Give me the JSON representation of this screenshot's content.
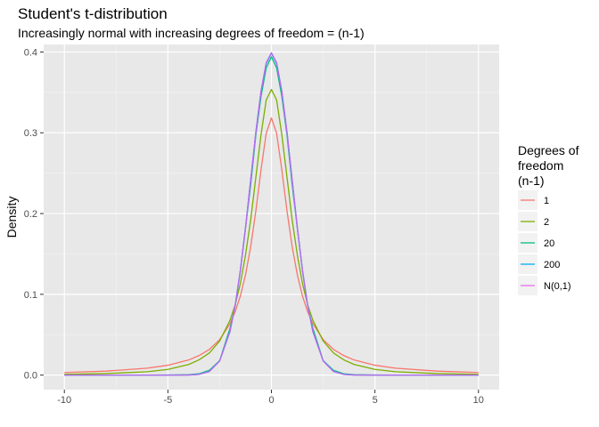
{
  "title": "Student's t-distribution",
  "subtitle": "Increasingly normal with increasing degrees of freedom = (n-1)",
  "chart_data": {
    "type": "line",
    "title": "Student's t-distribution",
    "subtitle": "Increasingly normal with increasing degrees of freedom = (n-1)",
    "xlabel": "",
    "ylabel": "Density",
    "xlim": [
      -10,
      10
    ],
    "ylim": [
      0,
      0.4
    ],
    "x_ticks": [
      -10,
      -5,
      0,
      5,
      10
    ],
    "x_tick_labels": [
      "-10",
      "-5",
      "0",
      "5",
      "10"
    ],
    "y_ticks": [
      0.0,
      0.1,
      0.2,
      0.3,
      0.4
    ],
    "y_tick_labels": [
      "0.0",
      "0.1",
      "0.2",
      "0.3",
      "0.4"
    ],
    "grid": true,
    "background": "#e8e8e8",
    "legend": {
      "placement": "right",
      "title_lines": [
        "Degrees of",
        "freedom",
        "(n-1)"
      ]
    },
    "x": [
      -10,
      -8,
      -6,
      -5,
      -4,
      -3.5,
      -3,
      -2.5,
      -2,
      -1.75,
      -1.5,
      -1.25,
      -1,
      -0.75,
      -0.5,
      -0.25,
      0,
      0.25,
      0.5,
      0.75,
      1,
      1.25,
      1.5,
      1.75,
      2,
      2.5,
      3,
      3.5,
      4,
      5,
      6,
      8,
      10
    ],
    "series": [
      {
        "name": "1",
        "color": "#f8766d",
        "values": [
          0.0032,
          0.0049,
          0.0086,
          0.0122,
          0.0187,
          0.0241,
          0.0318,
          0.0439,
          0.0637,
          0.0784,
          0.0979,
          0.1244,
          0.1592,
          0.2037,
          0.2546,
          0.2996,
          0.3183,
          0.2996,
          0.2546,
          0.2037,
          0.1592,
          0.1244,
          0.0979,
          0.0784,
          0.0637,
          0.0439,
          0.0318,
          0.0241,
          0.0187,
          0.0122,
          0.0086,
          0.0049,
          0.0032
        ]
      },
      {
        "name": "2",
        "color": "#7cae00",
        "values": [
          0.001,
          0.0019,
          0.0042,
          0.0071,
          0.0131,
          0.0188,
          0.0274,
          0.0422,
          0.068,
          0.0871,
          0.1134,
          0.149,
          0.1925,
          0.2454,
          0.2981,
          0.3406,
          0.3536,
          0.3406,
          0.2981,
          0.2454,
          0.1925,
          0.149,
          0.1134,
          0.0871,
          0.068,
          0.0422,
          0.0274,
          0.0188,
          0.0131,
          0.0071,
          0.0042,
          0.0019,
          0.001
        ]
      },
      {
        "name": "20",
        "color": "#00bf7d",
        "values": [
          0,
          0,
          0,
          0.0001,
          0.0005,
          0.0016,
          0.0059,
          0.0179,
          0.0581,
          0.0855,
          0.1293,
          0.1822,
          0.2359,
          0.2975,
          0.3454,
          0.3804,
          0.394,
          0.3804,
          0.3454,
          0.2975,
          0.2359,
          0.1822,
          0.1293,
          0.0855,
          0.0581,
          0.0179,
          0.0059,
          0.0016,
          0.0005,
          0.0001,
          0,
          0,
          0
        ]
      },
      {
        "name": "200",
        "color": "#00b0f6",
        "values": [
          0,
          0,
          0,
          0,
          0.0002,
          0.0009,
          0.0046,
          0.0177,
          0.0544,
          0.0863,
          0.1298,
          0.1832,
          0.2418,
          0.3012,
          0.3515,
          0.3855,
          0.3984,
          0.3855,
          0.3515,
          0.3012,
          0.2418,
          0.1832,
          0.1298,
          0.0863,
          0.0544,
          0.0177,
          0.0046,
          0.0009,
          0.0002,
          0,
          0,
          0,
          0
        ]
      },
      {
        "name": "N(0,1)",
        "color": "#e76bf3",
        "values": [
          0,
          0,
          0,
          0,
          0.0001,
          0.0009,
          0.0044,
          0.0175,
          0.054,
          0.0863,
          0.1295,
          0.1826,
          0.242,
          0.3011,
          0.3521,
          0.3867,
          0.3989,
          0.3867,
          0.3521,
          0.3011,
          0.242,
          0.1826,
          0.1295,
          0.0863,
          0.054,
          0.0175,
          0.0044,
          0.0009,
          0.0001,
          0,
          0,
          0,
          0
        ]
      }
    ],
    "overlay_color": "#a06bf0"
  }
}
